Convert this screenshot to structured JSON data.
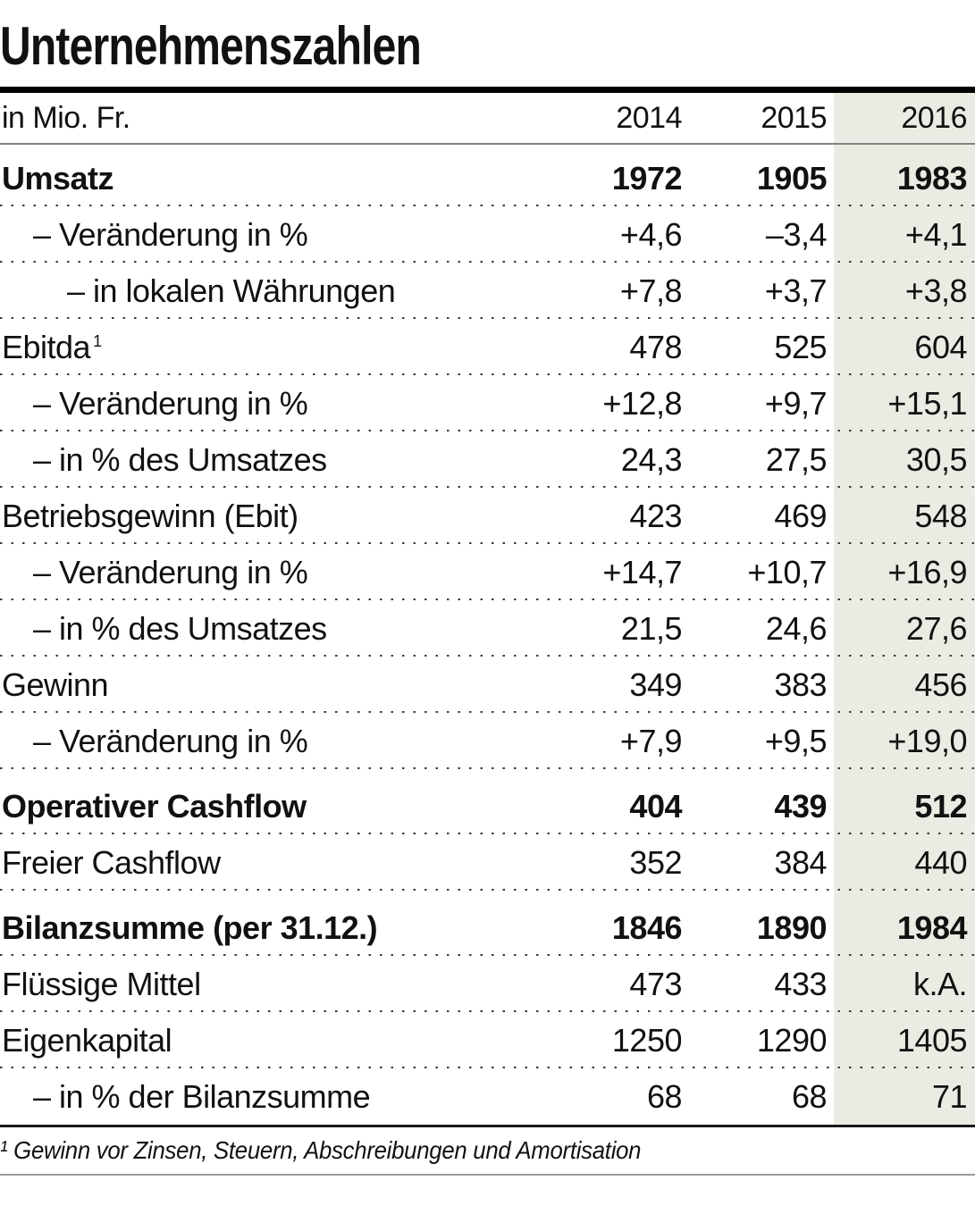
{
  "chart_data": {
    "type": "table",
    "title": "Unternehmenszahlen",
    "unit_label": "in Mio. Fr.",
    "columns": [
      "2014",
      "2015",
      "2016"
    ],
    "highlight_column": "2016",
    "rows": [
      {
        "label": "Umsatz",
        "bold": true,
        "indent": 0,
        "values": [
          "1972",
          "1905",
          "1983"
        ]
      },
      {
        "label": "– Veränderung in %",
        "bold": false,
        "indent": 1,
        "values": [
          "+4,6",
          "–3,4",
          "+4,1"
        ]
      },
      {
        "label": "– in lokalen Währungen",
        "bold": false,
        "indent": 2,
        "values": [
          "+7,8",
          "+3,7",
          "+3,8"
        ]
      },
      {
        "label": "Ebitda",
        "sup": "1",
        "bold": false,
        "indent": 0,
        "values": [
          "478",
          "525",
          "604"
        ]
      },
      {
        "label": "– Veränderung in %",
        "bold": false,
        "indent": 1,
        "values": [
          "+12,8",
          "+9,7",
          "+15,1"
        ]
      },
      {
        "label": "– in % des Umsatzes",
        "bold": false,
        "indent": 1,
        "values": [
          "24,3",
          "27,5",
          "30,5"
        ]
      },
      {
        "label": "Betriebsgewinn (Ebit)",
        "bold": false,
        "indent": 0,
        "values": [
          "423",
          "469",
          "548"
        ]
      },
      {
        "label": "– Veränderung in %",
        "bold": false,
        "indent": 1,
        "values": [
          "+14,7",
          "+10,7",
          "+16,9"
        ]
      },
      {
        "label": "– in % des Umsatzes",
        "bold": false,
        "indent": 1,
        "values": [
          "21,5",
          "24,6",
          "27,6"
        ]
      },
      {
        "label": "Gewinn",
        "bold": false,
        "indent": 0,
        "values": [
          "349",
          "383",
          "456"
        ]
      },
      {
        "label": "– Veränderung in %",
        "bold": false,
        "indent": 1,
        "values": [
          "+7,9",
          "+9,5",
          "+19,0"
        ]
      },
      {
        "label": "Operativer Cashflow",
        "bold": true,
        "indent": 0,
        "section_gap": true,
        "values": [
          "404",
          "439",
          "512"
        ]
      },
      {
        "label": "Freier Cashflow",
        "bold": false,
        "indent": 0,
        "values": [
          "352",
          "384",
          "440"
        ]
      },
      {
        "label": "Bilanzsumme (per 31.12.)",
        "bold": true,
        "indent": 0,
        "section_gap": true,
        "values": [
          "1846",
          "1890",
          "1984"
        ]
      },
      {
        "label": "Flüssige Mittel",
        "bold": false,
        "indent": 0,
        "values": [
          "473",
          "433",
          "k.A."
        ]
      },
      {
        "label": "Eigenkapital",
        "bold": false,
        "indent": 0,
        "values": [
          "1250",
          "1290",
          "1405"
        ]
      },
      {
        "label": "– in % der Bilanzsumme",
        "bold": false,
        "indent": 1,
        "values": [
          "68",
          "68",
          "71"
        ]
      }
    ],
    "footnote": "¹ Gewinn vor Zinsen, Steuern, Abschreibungen und Amortisation"
  },
  "styles": {
    "highlight_color": "#ECEBE3",
    "text_color": "#111111",
    "rule_color": "#000000"
  }
}
